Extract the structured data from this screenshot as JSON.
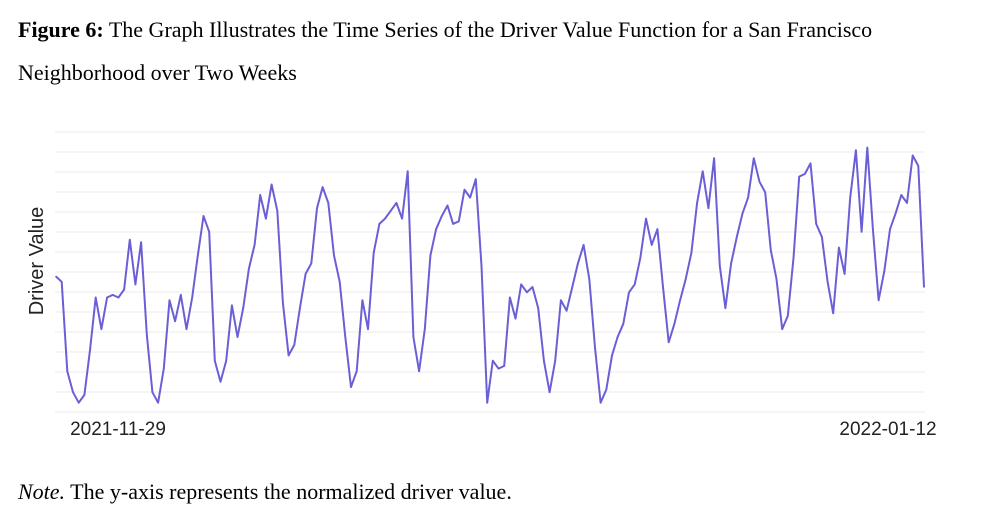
{
  "caption": {
    "label": "Figure 6:",
    "text": " The Graph Illustrates the Time Series of the Driver Value Function for a San Francisco Neighborhood over Two Weeks"
  },
  "note": {
    "label": "Note.",
    "text": " The y-axis represents the normalized driver value."
  },
  "chart_data": {
    "type": "line",
    "title": "",
    "xlabel": "",
    "ylabel": "Driver Value",
    "x_tick_labels": [
      "2021-11-29",
      "2022-01-12"
    ],
    "y_tick_labels": [],
    "ylim": [
      0,
      1
    ],
    "grid": true,
    "line_color": "#6a5fd6",
    "series": [
      {
        "values": [
          0.5,
          0.48,
          0.14,
          0.06,
          0.02,
          0.05,
          0.22,
          0.42,
          0.3,
          0.42,
          0.43,
          0.42,
          0.45,
          0.64,
          0.47,
          0.63,
          0.28,
          0.06,
          0.02,
          0.15,
          0.41,
          0.33,
          0.43,
          0.3,
          0.42,
          0.58,
          0.73,
          0.67,
          0.18,
          0.1,
          0.18,
          0.39,
          0.27,
          0.38,
          0.53,
          0.62,
          0.81,
          0.72,
          0.85,
          0.75,
          0.4,
          0.2,
          0.24,
          0.38,
          0.51,
          0.55,
          0.76,
          0.84,
          0.78,
          0.58,
          0.48,
          0.27,
          0.08,
          0.14,
          0.41,
          0.3,
          0.59,
          0.7,
          0.72,
          0.75,
          0.78,
          0.72,
          0.9,
          0.27,
          0.14,
          0.3,
          0.58,
          0.68,
          0.73,
          0.77,
          0.7,
          0.71,
          0.83,
          0.8,
          0.87,
          0.54,
          0.02,
          0.18,
          0.15,
          0.16,
          0.42,
          0.34,
          0.47,
          0.44,
          0.46,
          0.38,
          0.18,
          0.06,
          0.18,
          0.41,
          0.37,
          0.46,
          0.55,
          0.62,
          0.49,
          0.23,
          0.02,
          0.07,
          0.2,
          0.27,
          0.32,
          0.44,
          0.47,
          0.57,
          0.72,
          0.62,
          0.68,
          0.46,
          0.25,
          0.32,
          0.41,
          0.49,
          0.59,
          0.78,
          0.9,
          0.76,
          0.95,
          0.54,
          0.38,
          0.55,
          0.65,
          0.74,
          0.8,
          0.95,
          0.86,
          0.82,
          0.6,
          0.49,
          0.3,
          0.35,
          0.57,
          0.88,
          0.89,
          0.93,
          0.7,
          0.65,
          0.48,
          0.36,
          0.61,
          0.51,
          0.8,
          0.98,
          0.67,
          0.99,
          0.68,
          0.41,
          0.52,
          0.68,
          0.74,
          0.81,
          0.78,
          0.96,
          0.92,
          0.46
        ],
        "comment_excluded": false
      }
    ]
  }
}
